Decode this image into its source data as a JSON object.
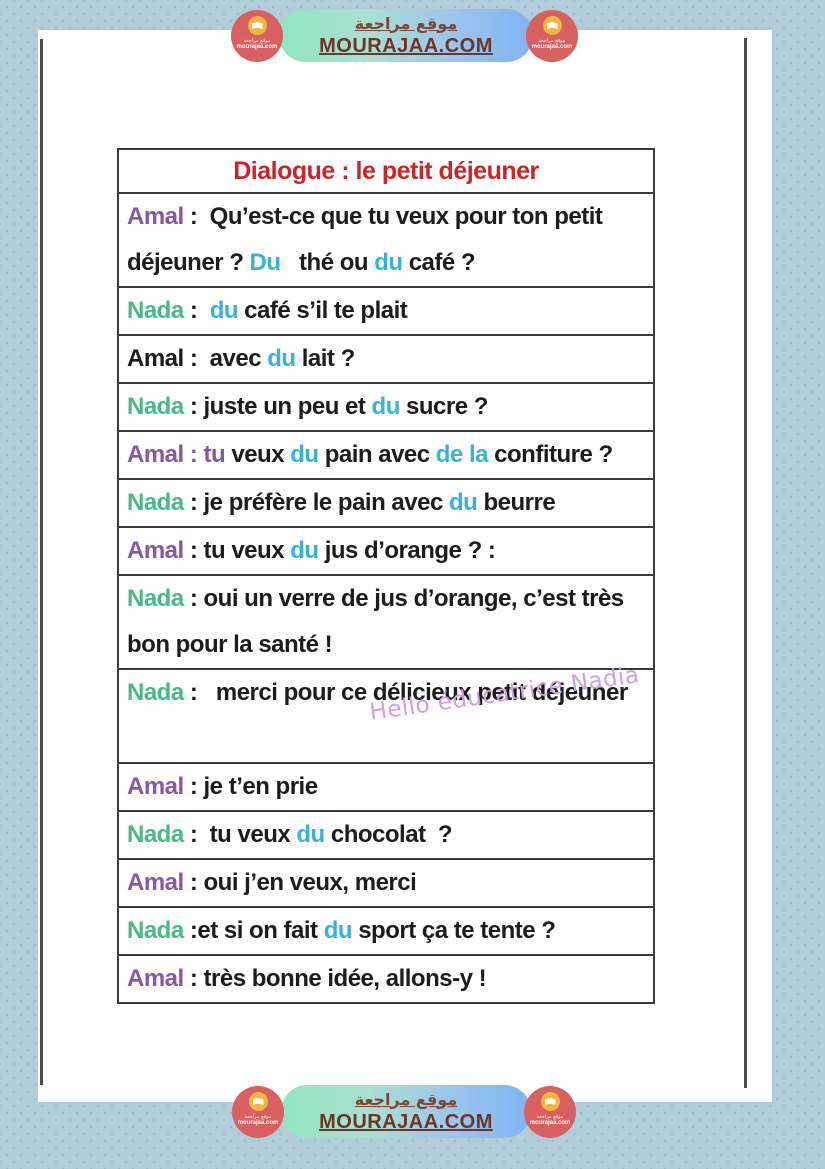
{
  "banner": {
    "arabic": "موقع مراجعة",
    "domain": "MOURAJAA.COM",
    "logo_arabic": "موقع مراجعة",
    "logo_domain": "mourajaa.com"
  },
  "colors": {
    "red": "#cb2527",
    "purple": "#8a56a0",
    "green": "#49b985",
    "cyan": "#3ab2d8",
    "black": "#1c1c1c",
    "watermark": "#cba2e0",
    "background": "#b2cdd9",
    "paper": "#ffffff",
    "pill_green": "#92e5c1",
    "pill_blue": "#7fb4f2",
    "badge_red": "#d96060"
  },
  "dialogue": {
    "title": "Dialogue : le petit déjeuner",
    "watermark": "Hello éducatrice Nadia",
    "rows": [
      {
        "lines": 2,
        "segments": [
          {
            "text": "Amal",
            "color": "purple"
          },
          {
            "text": " :  Qu’est-ce que tu veux pour ton petit déjeuner ? ",
            "color": "black"
          },
          {
            "text": "Du",
            "color": "cyan"
          },
          {
            "text": "   thé ou ",
            "color": "black"
          },
          {
            "text": "du",
            "color": "cyan"
          },
          {
            "text": " café ?",
            "color": "black"
          }
        ]
      },
      {
        "lines": 1,
        "segments": [
          {
            "text": "Nada",
            "color": "green"
          },
          {
            "text": " :  ",
            "color": "black"
          },
          {
            "text": "du",
            "color": "cyan"
          },
          {
            "text": " café s’il te plait",
            "color": "black"
          }
        ]
      },
      {
        "lines": 1,
        "segments": [
          {
            "text": "Amal",
            "color": "black"
          },
          {
            "text": " :  avec ",
            "color": "black"
          },
          {
            "text": "du",
            "color": "cyan"
          },
          {
            "text": " lait ?",
            "color": "black"
          }
        ]
      },
      {
        "lines": 1,
        "segments": [
          {
            "text": "Nada",
            "color": "green"
          },
          {
            "text": " : juste un peu et ",
            "color": "black"
          },
          {
            "text": "du",
            "color": "cyan"
          },
          {
            "text": " sucre ?",
            "color": "black"
          }
        ]
      },
      {
        "lines": 1,
        "segments": [
          {
            "text": "Amal : tu",
            "color": "purple"
          },
          {
            "text": " veux ",
            "color": "black"
          },
          {
            "text": "du",
            "color": "cyan"
          },
          {
            "text": " pain avec ",
            "color": "black"
          },
          {
            "text": "de la",
            "color": "cyan"
          },
          {
            "text": " confiture ?",
            "color": "black"
          }
        ]
      },
      {
        "lines": 1,
        "segments": [
          {
            "text": "Nada",
            "color": "green"
          },
          {
            "text": " : je préfère le pain avec ",
            "color": "black"
          },
          {
            "text": "du",
            "color": "cyan"
          },
          {
            "text": " beurre",
            "color": "black"
          }
        ]
      },
      {
        "lines": 1,
        "segments": [
          {
            "text": "Amal",
            "color": "purple"
          },
          {
            "text": " : tu veux ",
            "color": "black"
          },
          {
            "text": "du",
            "color": "cyan"
          },
          {
            "text": " jus d’orange ? :",
            "color": "black"
          }
        ]
      },
      {
        "lines": 2,
        "segments": [
          {
            "text": "Nada",
            "color": "green"
          },
          {
            "text": " : oui un verre de jus d’orange, c’est très bon pour la santé !",
            "color": "black"
          }
        ]
      },
      {
        "lines": 2,
        "segments": [
          {
            "text": "Nada",
            "color": "green"
          },
          {
            "text": " :   merci pour ce délicieux petit déjeuner",
            "color": "black"
          }
        ]
      },
      {
        "lines": 1,
        "segments": [
          {
            "text": "Amal",
            "color": "purple"
          },
          {
            "text": " : je t’en prie",
            "color": "black"
          }
        ]
      },
      {
        "lines": 1,
        "segments": [
          {
            "text": "Nada",
            "color": "green"
          },
          {
            "text": " :  tu veux ",
            "color": "black"
          },
          {
            "text": "du",
            "color": "cyan"
          },
          {
            "text": " chocolat  ?",
            "color": "black"
          }
        ]
      },
      {
        "lines": 1,
        "segments": [
          {
            "text": "Amal",
            "color": "purple"
          },
          {
            "text": " : oui j’en veux, merci",
            "color": "black"
          }
        ]
      },
      {
        "lines": 1,
        "segments": [
          {
            "text": "Nada",
            "color": "green"
          },
          {
            "text": " :et si on fait ",
            "color": "black"
          },
          {
            "text": "du",
            "color": "cyan"
          },
          {
            "text": " sport ça te tente ?",
            "color": "black"
          }
        ]
      },
      {
        "lines": 1,
        "segments": [
          {
            "text": "Amal",
            "color": "purple"
          },
          {
            "text": " : très bonne idée, allons-y !",
            "color": "black"
          }
        ]
      }
    ]
  }
}
